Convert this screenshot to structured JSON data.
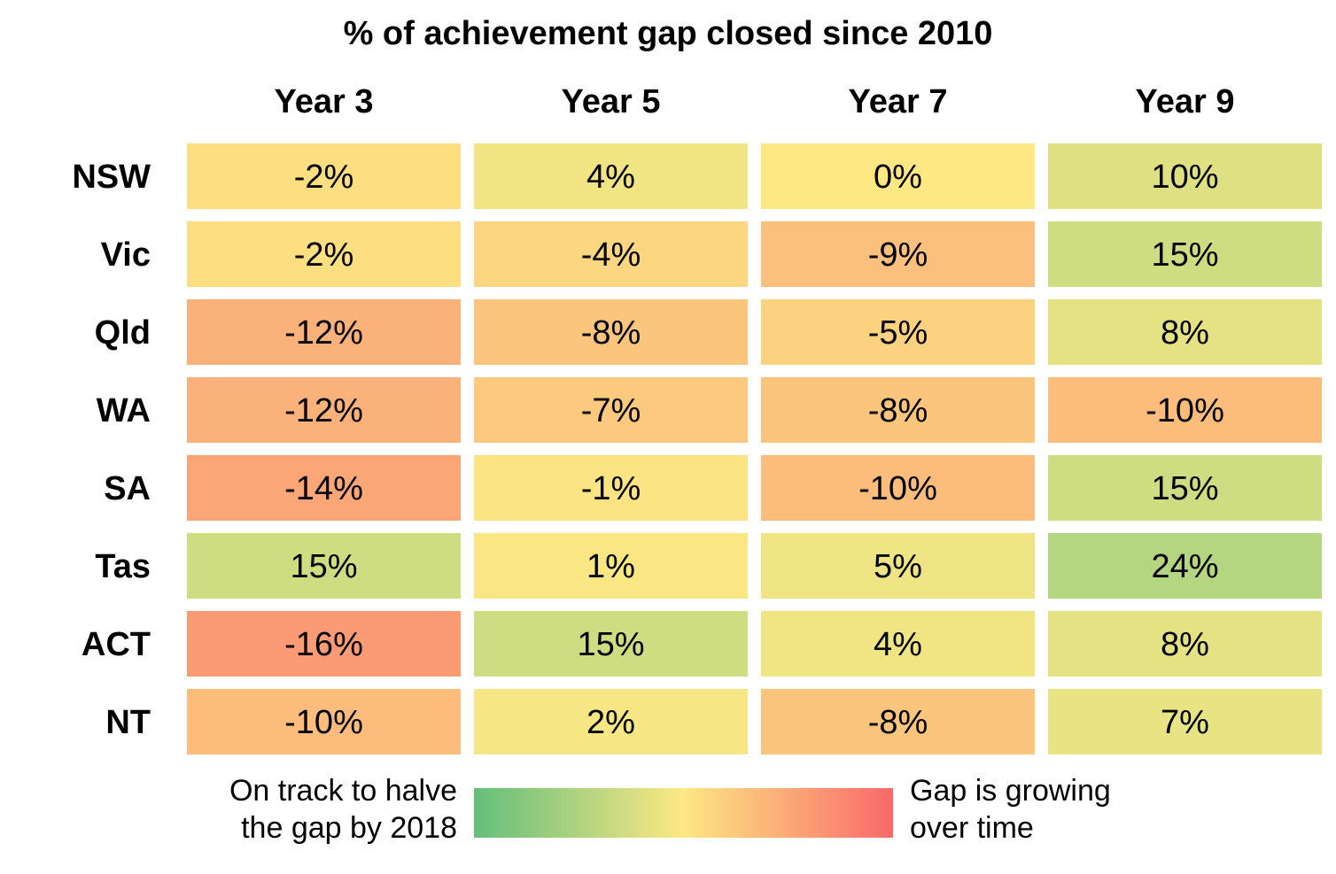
{
  "chart_data": {
    "type": "heatmap",
    "title": "% of achievement gap closed since 2010",
    "columns": [
      "Year 3",
      "Year 5",
      "Year 7",
      "Year 9"
    ],
    "rows": [
      "NSW",
      "Vic",
      "Qld",
      "WA",
      "SA",
      "Tas",
      "ACT",
      "NT"
    ],
    "values": [
      [
        -2,
        4,
        0,
        10
      ],
      [
        -2,
        -4,
        -9,
        15
      ],
      [
        -12,
        -8,
        -5,
        8
      ],
      [
        -12,
        -7,
        -8,
        -10
      ],
      [
        -14,
        -1,
        -10,
        15
      ],
      [
        15,
        1,
        5,
        24
      ],
      [
        -16,
        15,
        4,
        8
      ],
      [
        -10,
        2,
        -8,
        7
      ]
    ],
    "labels": [
      [
        "-2%",
        "4%",
        "0%",
        "10%"
      ],
      [
        "-2%",
        "-4%",
        "-9%",
        "15%"
      ],
      [
        "-12%",
        "-8%",
        "-5%",
        "8%"
      ],
      [
        "-12%",
        "-7%",
        "-8%",
        "-10%"
      ],
      [
        "-14%",
        "-1%",
        "-10%",
        "15%"
      ],
      [
        "15%",
        "1%",
        "5%",
        "24%"
      ],
      [
        "-16%",
        "15%",
        "4%",
        "8%"
      ],
      [
        "-10%",
        "2%",
        "-8%",
        "7%"
      ]
    ],
    "unit": "%",
    "color_scale": {
      "stops": [
        "#f8696b",
        "#fbbc7c",
        "#fde884",
        "#b1d580",
        "#63be7b"
      ],
      "stop_values": [
        -25,
        -10,
        0,
        25,
        50
      ]
    },
    "legend": {
      "left_text": [
        "On track to halve",
        "the gap by 2018"
      ],
      "right_text": [
        "Gap is growing",
        "over time"
      ],
      "gradient_colors": [
        "#63be7b",
        "#fde884",
        "#f8696b"
      ]
    }
  }
}
